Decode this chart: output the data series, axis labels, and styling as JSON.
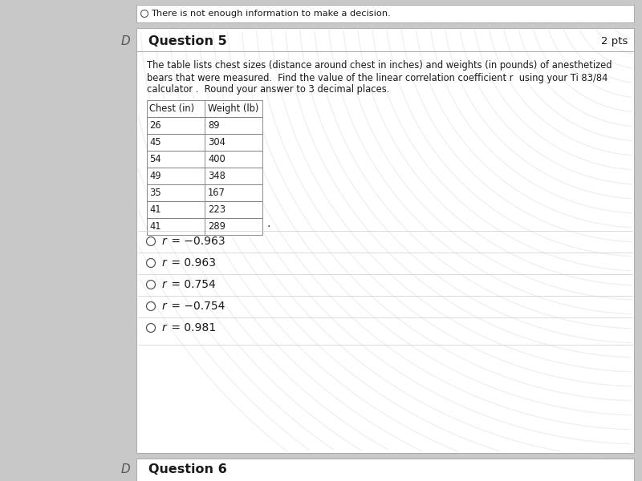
{
  "title": "Question 5",
  "pts": "2 pts",
  "description_line1": "The table lists chest sizes (distance around chest in inches) and weights (in pounds) of anesthetized",
  "description_line2": "bears that were measured.  Find the value of the linear correlation coefficient r  using your Ti 83/84",
  "description_line3": "calculator .  Round your answer to 3 decimal places.",
  "table_headers": [
    "Chest (in)",
    "Weight (lb)"
  ],
  "table_data": [
    [
      "26",
      "89"
    ],
    [
      "45",
      "304"
    ],
    [
      "54",
      "400"
    ],
    [
      "49",
      "348"
    ],
    [
      "35",
      "167"
    ],
    [
      "41",
      "223"
    ],
    [
      "41",
      "289"
    ]
  ],
  "options": [
    [
      "r",
      " = −0.963"
    ],
    [
      "r",
      " = 0.963"
    ],
    [
      "r",
      " = 0.754"
    ],
    [
      "r",
      " = −0.754"
    ],
    [
      "r",
      " = 0.981"
    ]
  ],
  "outer_bg": "#c8c8c8",
  "box_bg": "#f0eeec",
  "white": "#ffffff",
  "text_color": "#1a1a1a",
  "border_color": "#aaaaaa",
  "top_text": "There is not enough information to make a decision.",
  "question6": "Question 6"
}
